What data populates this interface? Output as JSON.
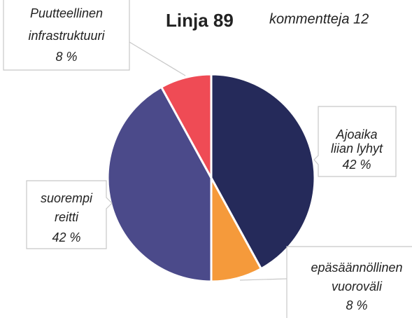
{
  "chart_data": {
    "type": "pie",
    "title": "Linja 89",
    "subtitle": "kommentteja 12",
    "categories": [
      [
        "Ajoaika",
        "liian lyhyt"
      ],
      [
        "epäsäännöllinen",
        "vuoroväli"
      ],
      [
        "suorempi",
        "reitti"
      ],
      [
        "Puutteellinen",
        "infrastruktuuri"
      ]
    ],
    "values": [
      42,
      8,
      42,
      8
    ],
    "value_labels": [
      "42 %",
      "8 %",
      "42 %",
      "8 %"
    ],
    "colors": [
      "#252a5a",
      "#f59a3b",
      "#4b4a8a",
      "#ef4b55"
    ]
  }
}
